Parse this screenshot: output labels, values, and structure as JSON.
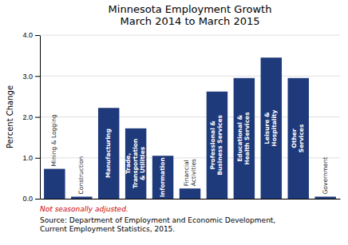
{
  "chart_data": {
    "type": "bar",
    "title": "Minnesota Employment Growth\nMarch 2014 to March 2015",
    "ylabel": "Percent Change",
    "categories": [
      "Mining & Logging",
      "Construction",
      "Manufacturing",
      "Trade,\nTransportation\n& Utilities",
      "Information",
      "Financial\nActivities",
      "Professional &\nBusiness Services",
      "Educational &\nHealth Services",
      "Leisure &\nHospitality",
      "Other\nServices",
      "Government"
    ],
    "values": [
      0.73,
      0.05,
      2.22,
      1.72,
      1.05,
      0.25,
      2.62,
      2.95,
      3.45,
      2.95,
      0.05
    ],
    "color": "#1F3A7A",
    "ylim": [
      0,
      4.0
    ],
    "yticks": [
      {
        "value": 0.0,
        "label": "0.0"
      },
      {
        "value": 1.0,
        "label": "1.0"
      },
      {
        "value": 2.0,
        "label": "2.0"
      },
      {
        "value": 3.0,
        "label": "3.0"
      },
      {
        "value": 4.0,
        "label": "4.0"
      }
    ],
    "grid": true,
    "tick_labels": "y",
    "annotations": [
      {
        "text": "Not seasonally adjusted.",
        "color": "#CC0000"
      },
      {
        "text": "Source: Department of Employment and Economic Development,\nCurrent Employment Statistics, 2015."
      }
    ]
  }
}
